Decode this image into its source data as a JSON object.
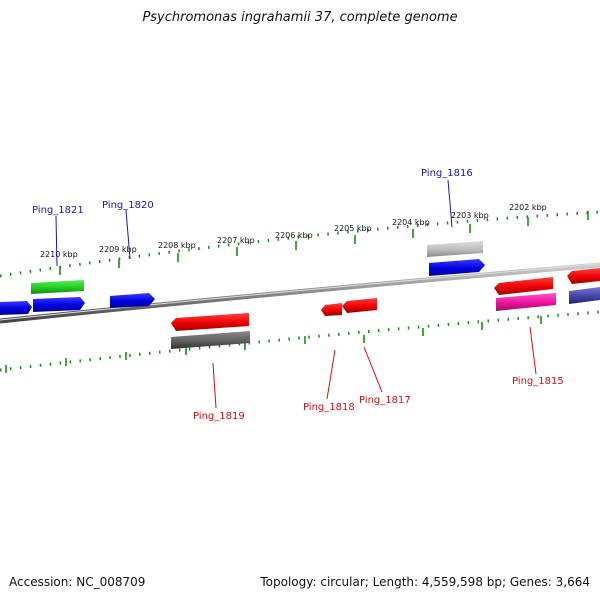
{
  "title": "Psychromonas ingrahamii 37, complete genome",
  "footer": {
    "accession": "Accession: NC_008709",
    "summary": "Topology: circular; Length: 4,559,598 bp; Genes: 3,664"
  },
  "colors": {
    "backbone": "#8a8a8a",
    "ticks": "#1a8a1a",
    "label_forward": "#1a1aa8",
    "label_reverse": "#cc1111"
  },
  "scale_marks": [
    "2210 kbp",
    "2209 kbp",
    "2208 kbp",
    "2207 kbp",
    "2206 kbp",
    "2205 kbp",
    "2204 kbp",
    "2203 kbp",
    "2202 kbp"
  ],
  "gene_labels": {
    "forward": [
      "Ping_1821",
      "Ping_1820",
      "Ping_1816"
    ],
    "reverse": [
      "Ping_1819",
      "Ping_1818",
      "Ping_1817",
      "Ping_1815"
    ]
  }
}
